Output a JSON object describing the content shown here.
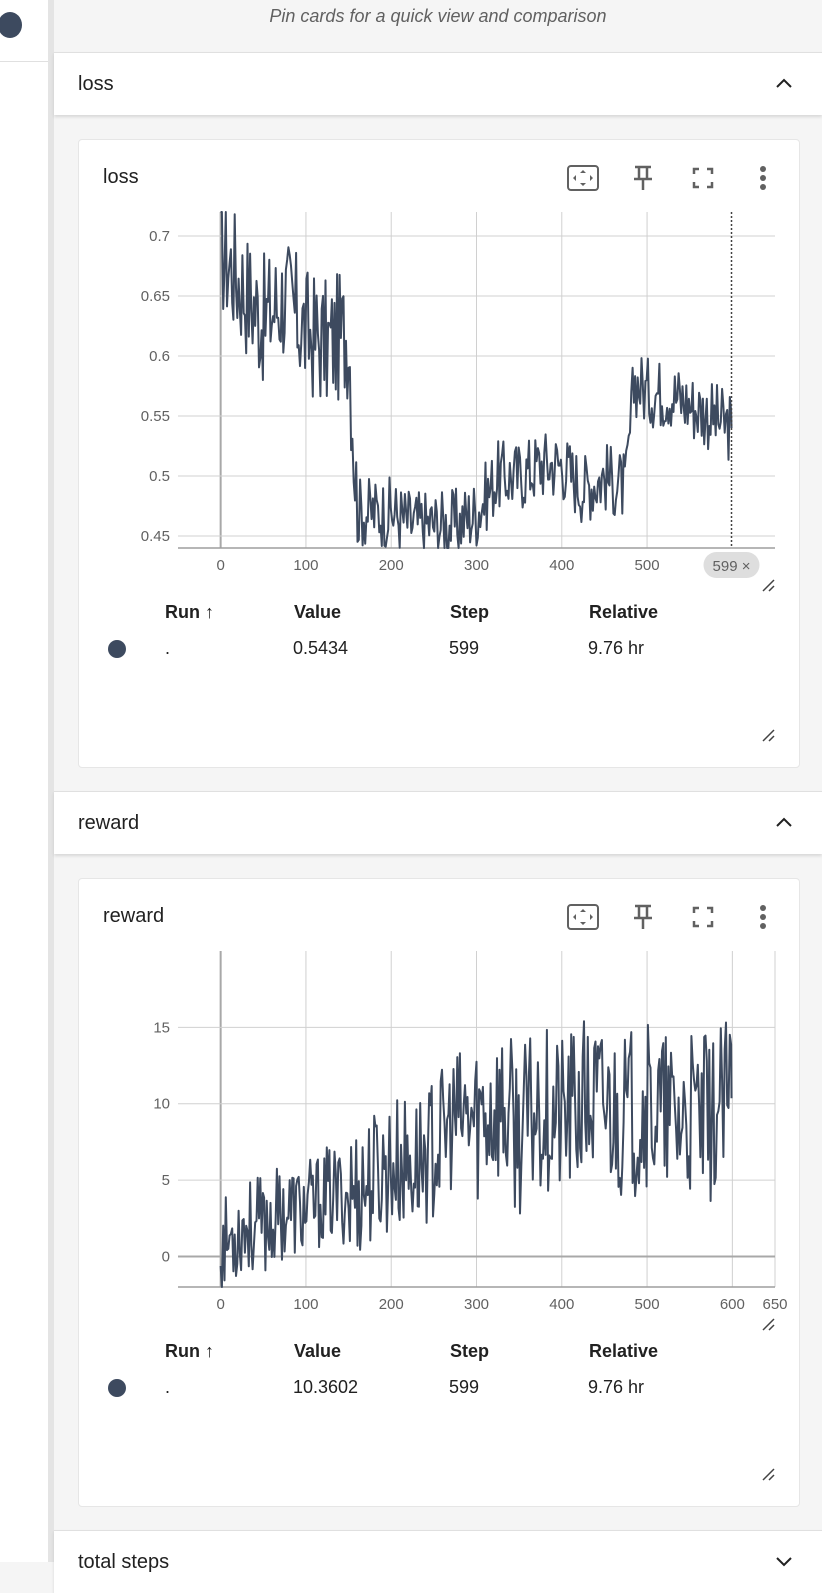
{
  "header": {
    "pin_hint": "Pin cards for a quick view and comparison"
  },
  "groups": [
    {
      "title": "loss",
      "card": {
        "title": "loss",
        "table": {
          "headers": [
            "Run ↑",
            "Value",
            "Step",
            "Relative"
          ],
          "rows": [
            {
              "run": ".",
              "value": "0.5434",
              "step": "599",
              "relative": "9.76 hr"
            }
          ]
        },
        "step_chip": "599 ×"
      }
    },
    {
      "title": "reward",
      "card": {
        "title": "reward",
        "table": {
          "headers": [
            "Run ↑",
            "Value",
            "Step",
            "Relative"
          ],
          "rows": [
            {
              "run": ".",
              "value": "10.3602",
              "step": "599",
              "relative": "9.76 hr"
            }
          ]
        }
      }
    },
    {
      "title": "total steps"
    }
  ],
  "icons": [
    "fit-domain-icon",
    "pin-icon",
    "fullscreen-icon",
    "more-vert-icon",
    "chevron-up-icon",
    "chevron-down-icon",
    "resize-handle-icon"
  ],
  "colors": {
    "series": "#3d4a5f",
    "grid": "#d0d0d0",
    "background": "#f5f5f5"
  },
  "chart_data": [
    {
      "type": "line",
      "title": "loss",
      "xlabel": "",
      "ylabel": "",
      "x_ticks": [
        "0",
        "100",
        "200",
        "300",
        "400",
        "500"
      ],
      "y_ticks": [
        "0.45",
        "0.5",
        "0.55",
        "0.6",
        "0.65",
        "0.7"
      ],
      "xlim": [
        -50,
        650
      ],
      "ylim": [
        0.44,
        0.72
      ],
      "cursor_step": 599,
      "series": [
        {
          "x": [
            0,
            25,
            50,
            75,
            100,
            125,
            150,
            160,
            175,
            200,
            225,
            250,
            275,
            300,
            325,
            350,
            375,
            400,
            425,
            450,
            475,
            485,
            500,
            525,
            550,
            575,
            599
          ],
          "values": [
            0.69,
            0.66,
            0.63,
            0.65,
            0.62,
            0.61,
            0.62,
            0.47,
            0.47,
            0.47,
            0.46,
            0.46,
            0.46,
            0.47,
            0.5,
            0.5,
            0.51,
            0.51,
            0.49,
            0.5,
            0.49,
            0.58,
            0.57,
            0.57,
            0.56,
            0.55,
            0.54
          ]
        }
      ]
    },
    {
      "type": "line",
      "title": "reward",
      "xlabel": "",
      "ylabel": "",
      "x_ticks": [
        "0",
        "100",
        "200",
        "300",
        "400",
        "500",
        "600",
        "650"
      ],
      "y_ticks": [
        "0",
        "5",
        "10",
        "15"
      ],
      "xlim": [
        -50,
        650
      ],
      "ylim": [
        -2,
        20
      ],
      "series": [
        {
          "x": [
            0,
            25,
            50,
            75,
            100,
            125,
            150,
            175,
            200,
            225,
            250,
            275,
            300,
            325,
            350,
            375,
            400,
            425,
            450,
            475,
            500,
            525,
            550,
            575,
            599
          ],
          "values": [
            0.5,
            2,
            2,
            3,
            3,
            4,
            4,
            5,
            6,
            6,
            7,
            9,
            9,
            10,
            8,
            10,
            9,
            10,
            10,
            9,
            10,
            9,
            9,
            9,
            10.36
          ]
        }
      ]
    }
  ]
}
